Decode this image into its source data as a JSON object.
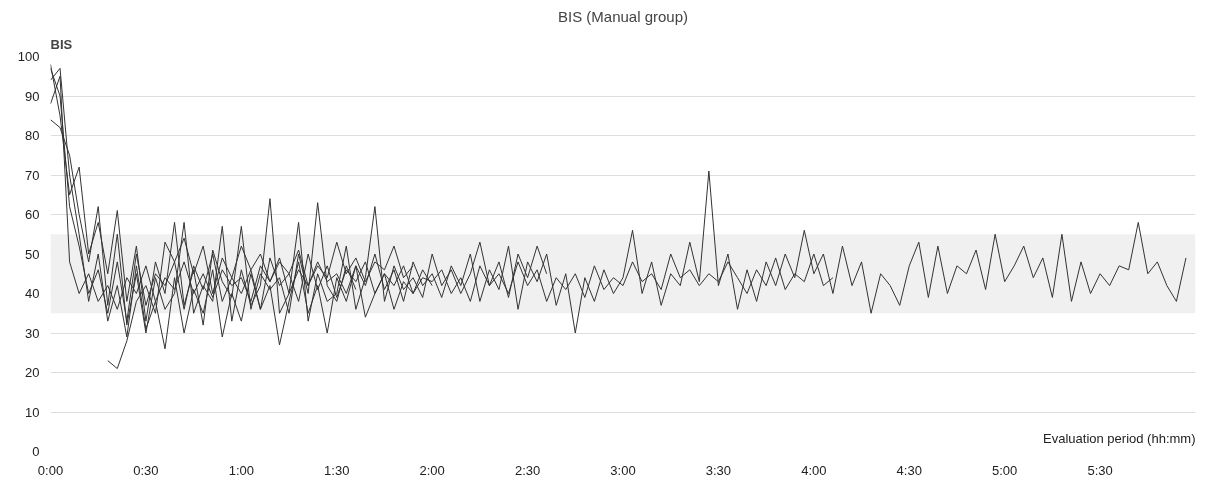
{
  "chart_data": {
    "type": "line",
    "title": "BIS (Manual group)",
    "xlabel": "Evaluation period (hh:mm)",
    "ylabel": "BIS",
    "x": [
      0,
      0.05,
      0.1,
      0.15,
      0.2,
      0.25,
      0.3,
      0.35,
      0.4,
      0.45,
      0.5,
      0.55,
      0.6,
      0.65,
      0.7,
      0.75,
      0.8,
      0.85,
      0.9,
      0.95,
      1.0,
      1.05,
      1.1,
      1.15,
      1.2,
      1.25,
      1.3,
      1.35,
      1.4,
      1.45,
      1.5,
      1.55,
      1.6,
      1.65,
      1.7,
      1.75,
      1.8,
      1.85,
      1.9,
      1.95,
      2.0,
      2.05,
      2.1,
      2.15,
      2.2,
      2.25,
      2.3,
      2.35,
      2.4,
      2.45,
      2.5,
      2.55,
      2.6,
      2.65,
      2.7,
      2.75,
      2.8,
      2.85,
      2.9,
      2.95,
      3.0,
      3.05,
      3.1,
      3.15,
      3.2,
      3.25,
      3.3,
      3.35,
      3.4,
      3.45,
      3.5,
      3.55,
      3.6,
      3.65,
      3.7,
      3.75,
      3.8,
      3.85,
      3.9,
      3.95,
      4.0,
      4.05,
      4.1,
      4.15,
      4.2,
      4.25,
      4.3,
      4.35,
      4.4,
      4.45,
      4.5,
      4.55,
      4.6,
      4.65,
      4.7,
      4.75,
      4.8,
      4.85,
      4.9,
      4.95,
      5.0,
      5.05,
      5.1,
      5.15,
      5.2,
      5.25,
      5.3,
      5.35,
      5.4,
      5.45,
      5.5,
      5.55,
      5.6,
      5.65,
      5.7,
      5.75,
      5.8,
      5.85,
      5.9,
      5.95
    ],
    "series": [
      {
        "color": "#333333",
        "values": [
          88,
          95,
          48,
          40,
          45,
          38,
          42,
          36,
          44,
          40,
          47,
          38,
          44,
          41,
          48,
          40,
          45,
          39,
          46,
          42,
          44,
          38,
          47,
          43,
          49,
          40,
          46,
          42,
          48,
          43,
          45,
          40,
          47,
          42,
          50,
          41,
          46,
          38,
          48,
          42,
          45,
          39,
          47,
          42,
          50,
          38,
          46,
          41,
          52,
          36,
          48,
          43,
          50,
          37,
          45,
          30,
          44,
          38,
          46,
          40,
          44,
          56,
          40,
          48,
          37,
          45,
          42,
          53,
          43,
          71,
          42,
          50,
          36,
          46,
          38,
          48,
          42,
          50,
          44,
          56,
          45,
          50,
          40,
          52,
          42,
          48,
          35,
          45,
          42,
          37,
          47,
          53,
          39,
          52,
          40,
          47,
          45,
          51,
          41,
          55,
          43,
          47,
          52,
          44,
          49,
          39,
          55,
          38,
          48,
          40,
          45,
          42,
          47,
          46,
          58,
          45,
          48,
          42,
          38,
          49
        ]
      },
      {
        "color": "#333333",
        "values": [
          97,
          90,
          62,
          52,
          40,
          46,
          35,
          48,
          33,
          50,
          37,
          45,
          42,
          48,
          36,
          47,
          41,
          50,
          38,
          44,
          40,
          46,
          36,
          49,
          42,
          45,
          38,
          50,
          41,
          47,
          39,
          46,
          43,
          48,
          40,
          45,
          42,
          47,
          40,
          44,
          43,
          46,
          40,
          44,
          38,
          47,
          42,
          45,
          40,
          48,
          42,
          46,
          38,
          44,
          41,
          45,
          39,
          47,
          41,
          44,
          42,
          48,
          43,
          45,
          41,
          50,
          44,
          46,
          42,
          45,
          43,
          48,
          44,
          40,
          46,
          42,
          49,
          41,
          45,
          43,
          50,
          42,
          44,
          null,
          null,
          null,
          null,
          null,
          null,
          null,
          null,
          null,
          null,
          null,
          null,
          null,
          null,
          null,
          null,
          null,
          null,
          null,
          null,
          null,
          null,
          null,
          null,
          null,
          null,
          null,
          null,
          null,
          null,
          null,
          null,
          null,
          null,
          null,
          null,
          null
        ]
      },
      {
        "color": "#333333",
        "values": [
          84,
          82,
          75,
          60,
          48,
          62,
          37,
          55,
          32,
          45,
          30,
          44,
          36,
          40,
          58,
          35,
          42,
          38,
          57,
          33,
          46,
          37,
          42,
          64,
          35,
          40,
          58,
          33,
          45,
          38,
          40,
          52,
          36,
          44,
          62,
          38,
          47,
          41,
          44,
          39,
          50,
          42,
          46,
          40,
          45,
          53,
          42,
          48,
          39,
          50,
          44,
          52,
          45,
          null,
          null,
          null,
          null,
          null,
          null,
          null,
          null,
          null,
          null,
          null,
          null,
          null,
          null,
          null,
          null,
          null,
          null,
          null,
          null,
          null,
          null,
          null,
          null,
          null,
          null,
          null,
          null,
          null,
          null,
          null,
          null,
          null,
          null,
          null,
          null,
          null,
          null,
          null,
          null,
          null,
          null,
          null,
          null,
          null,
          null,
          null,
          null,
          null,
          null,
          null,
          null,
          null,
          null,
          null,
          null,
          null,
          null,
          null,
          null,
          null,
          null,
          null,
          null,
          null,
          null,
          null
        ]
      },
      {
        "color": "#333333",
        "values": [
          94,
          97,
          70,
          55,
          38,
          50,
          33,
          42,
          29,
          47,
          31,
          38,
          26,
          44,
          30,
          41,
          35,
          46,
          29,
          40,
          33,
          45,
          36,
          42,
          27,
          38,
          48,
          35,
          42,
          30,
          44,
          38,
          47,
          34,
          40,
          45,
          36,
          43,
          40,
          46,
          42,
          null,
          null,
          null,
          null,
          null,
          null,
          null,
          null,
          null,
          null,
          null,
          null,
          null,
          null,
          null,
          null,
          null,
          null,
          null,
          null,
          null,
          null,
          null,
          null,
          null,
          null,
          null,
          null,
          null,
          null,
          null,
          null,
          null,
          null,
          null,
          null,
          null,
          null,
          null,
          null,
          null,
          null,
          null,
          null,
          null,
          null,
          null,
          null,
          null,
          null,
          null,
          null,
          null,
          null,
          null,
          null,
          null,
          null,
          null,
          null,
          null,
          null,
          null,
          null,
          null,
          null,
          null,
          null,
          null,
          null,
          null,
          null,
          null,
          null,
          null,
          null,
          null,
          null,
          null
        ]
      },
      {
        "color": "#333333",
        "values": [
          null,
          null,
          null,
          null,
          null,
          null,
          23,
          21,
          28,
          38,
          42,
          35,
          53,
          48,
          54,
          45,
          52,
          40,
          49,
          44,
          52,
          46,
          50,
          43,
          48,
          45,
          51,
          42,
          47,
          44,
          53,
          45,
          49,
          43,
          48,
          46,
          52,
          44,
          47,
          null,
          null,
          null,
          null,
          null,
          null,
          null,
          null,
          null,
          null,
          null,
          null,
          null,
          null,
          null,
          null,
          null,
          null,
          null,
          null,
          null,
          null,
          null,
          null,
          null,
          null,
          null,
          null,
          null,
          null,
          null,
          null,
          null,
          null,
          null,
          null,
          null,
          null,
          null,
          null,
          null,
          null,
          null,
          null,
          null,
          null,
          null,
          null,
          null,
          null,
          null,
          null,
          null,
          null,
          null,
          null,
          null,
          null,
          null,
          null,
          null,
          null,
          null,
          null,
          null,
          null,
          null,
          null,
          null,
          null,
          null,
          null,
          null,
          null,
          null,
          null,
          null,
          null,
          null,
          null,
          null
        ]
      },
      {
        "color": "#333333",
        "values": [
          98,
          85,
          65,
          72,
          50,
          58,
          45,
          61,
          38,
          52,
          33,
          48,
          40,
          58,
          37,
          46,
          32,
          51,
          43,
          39,
          57,
          36,
          45,
          41,
          44,
          35,
          50,
          40,
          63,
          42,
          38,
          47,
          41,
          null,
          null,
          null,
          null,
          null,
          null,
          null,
          null,
          null,
          null,
          null,
          null,
          null,
          null,
          null,
          null,
          null,
          null,
          null,
          null,
          null,
          null,
          null,
          null,
          null,
          null,
          null,
          null,
          null,
          null,
          null,
          null,
          null,
          null,
          null,
          null,
          null,
          null,
          null,
          null,
          null,
          null,
          null,
          null,
          null,
          null,
          null,
          null,
          null,
          null,
          null,
          null,
          null,
          null,
          null,
          null,
          null,
          null,
          null,
          null,
          null,
          null,
          null,
          null,
          null,
          null,
          null,
          null,
          null,
          null,
          null,
          null,
          null,
          null,
          null,
          null,
          null,
          null,
          null,
          null,
          null,
          null,
          null,
          null,
          null,
          null,
          null
        ]
      }
    ],
    "xlim": [
      0,
      6
    ],
    "ylim": [
      0,
      100
    ],
    "xticks": [
      {
        "value": 0,
        "label": "0:00"
      },
      {
        "value": 0.5,
        "label": "0:30"
      },
      {
        "value": 1,
        "label": "1:00"
      },
      {
        "value": 1.5,
        "label": "1:30"
      },
      {
        "value": 2,
        "label": "2:00"
      },
      {
        "value": 2.5,
        "label": "2:30"
      },
      {
        "value": 3,
        "label": "3:00"
      },
      {
        "value": 3.5,
        "label": "3:30"
      },
      {
        "value": 4,
        "label": "4:00"
      },
      {
        "value": 4.5,
        "label": "4:30"
      },
      {
        "value": 5,
        "label": "5:00"
      },
      {
        "value": 5.5,
        "label": "5:30"
      }
    ],
    "yticks": [
      0,
      10,
      20,
      30,
      40,
      50,
      60,
      70,
      80,
      90,
      100
    ],
    "bands": [
      {
        "axis": "y",
        "from": 35,
        "to": 55,
        "color": "#f0f0f0"
      }
    ],
    "grid": "y"
  }
}
